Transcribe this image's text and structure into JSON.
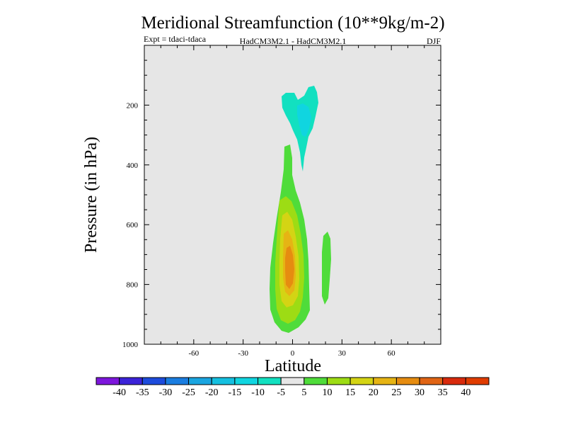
{
  "chart_data": {
    "type": "heatmap",
    "title": "Meridional Streamfunction (10**9kg/m-2)",
    "subtitle_left": "Expt = tdaci-tdaca",
    "subtitle_center": "HadCM3M2.1 - HadCM3M2.1",
    "subtitle_right": "DJF",
    "xlabel": "Latitude",
    "ylabel": "Pressure (in hPa)",
    "xlim": [
      -90,
      90
    ],
    "ylim": [
      1000,
      0
    ],
    "x_ticks": [
      -60,
      -30,
      0,
      30,
      60
    ],
    "y_ticks": [
      200,
      400,
      600,
      800,
      1000
    ],
    "background_color": "#e6e6e6",
    "colorbar": {
      "levels": [
        -40,
        -35,
        -30,
        -25,
        -20,
        -15,
        -10,
        -5,
        5,
        10,
        15,
        20,
        25,
        30,
        35,
        40
      ],
      "colors": [
        "#7d16dc",
        "#3b23d8",
        "#1d4bdc",
        "#1a7de0",
        "#1aa5e0",
        "#15c0e0",
        "#10d5e0",
        "#12e0c0",
        "#e6e6e6",
        "#4fdc3a",
        "#9ddc14",
        "#d4d414",
        "#e6b414",
        "#e68c10",
        "#e06414",
        "#d82a0c",
        "#e03c00"
      ]
    },
    "features": [
      {
        "name": "upper negative cell",
        "min_value": -15,
        "lat_range": [
          -4,
          14
        ],
        "pressure_range": [
          165,
          420
        ]
      },
      {
        "name": "lower positive cell",
        "max_value": 25,
        "lat_range": [
          -8,
          6
        ],
        "pressure_range": [
          340,
          965
        ]
      },
      {
        "name": "secondary positive cell",
        "max_value": 10,
        "lat_range": [
          17,
          23
        ],
        "pressure_range": [
          625,
          860
        ]
      }
    ]
  }
}
